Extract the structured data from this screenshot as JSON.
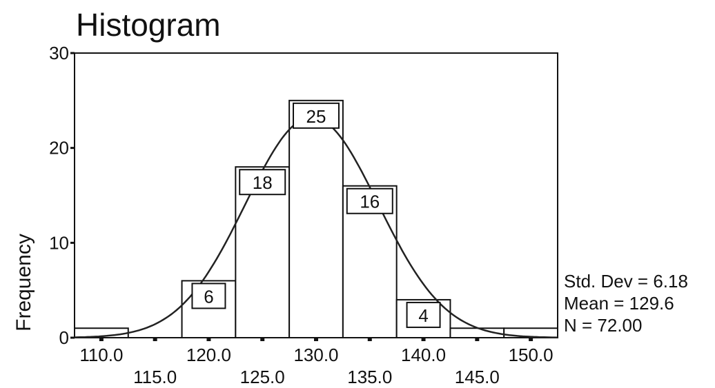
{
  "chart_data": {
    "type": "bar",
    "title": "Histogram",
    "xlabel": "",
    "ylabel": "Frequency",
    "bins": [
      {
        "from": 107.5,
        "to": 112.5,
        "value": 1,
        "label": ""
      },
      {
        "from": 112.5,
        "to": 117.5,
        "value": 0,
        "label": ""
      },
      {
        "from": 117.5,
        "to": 122.5,
        "value": 6,
        "label": "6"
      },
      {
        "from": 122.5,
        "to": 127.5,
        "value": 18,
        "label": "18"
      },
      {
        "from": 127.5,
        "to": 132.5,
        "value": 25,
        "label": "25"
      },
      {
        "from": 132.5,
        "to": 137.5,
        "value": 16,
        "label": "16"
      },
      {
        "from": 137.5,
        "to": 142.5,
        "value": 4,
        "label": "4"
      },
      {
        "from": 142.5,
        "to": 147.5,
        "value": 1,
        "label": ""
      },
      {
        "from": 147.5,
        "to": 152.5,
        "value": 1,
        "label": ""
      }
    ],
    "xlim": [
      107.5,
      152.5
    ],
    "ylim": [
      0,
      30
    ],
    "yticks": [
      0,
      10,
      20,
      30
    ],
    "xticks_upper": [
      "110.0",
      "120.0",
      "130.0",
      "140.0",
      "150.0"
    ],
    "xticks_lower": [
      "115.0",
      "125.0",
      "135.0",
      "145.0"
    ],
    "normal_curve": {
      "mean": 129.6,
      "std": 6.18,
      "n": 72,
      "bin_width": 5
    },
    "stats": {
      "std_dev": "Std. Dev = 6.18",
      "mean": "Mean = 129.6",
      "n": "N = 72.00"
    }
  }
}
